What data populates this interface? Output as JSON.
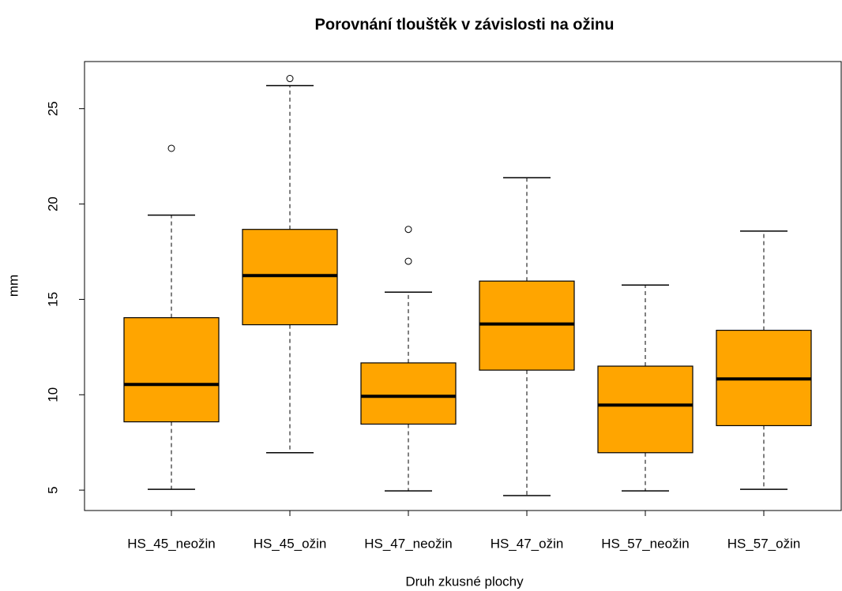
{
  "chart_data": {
    "type": "box",
    "title": "Porovnání tlouštěk v závislosti na ožinu",
    "x_label": "Druh zkusné plochy",
    "y_label": "mm",
    "categories": [
      "HS_45_neožin",
      "HS_45_ožin",
      "HS_47_neožin",
      "HS_47_ožin",
      "HS_57_neožin",
      "HS_57_ožin"
    ],
    "boxes": [
      {
        "min": 5.04,
        "q1": 8.58,
        "median": 10.54,
        "q3": 14.04,
        "max": 19.42,
        "outliers": [
          22.92
        ]
      },
      {
        "min": 6.96,
        "q1": 13.67,
        "median": 16.25,
        "q3": 18.67,
        "max": 26.21,
        "outliers": [
          26.58
        ]
      },
      {
        "min": 4.96,
        "q1": 8.46,
        "median": 9.92,
        "q3": 11.67,
        "max": 15.38,
        "outliers": [
          17.0,
          18.67
        ]
      },
      {
        "min": 4.71,
        "q1": 11.29,
        "median": 13.71,
        "q3": 15.96,
        "max": 21.38,
        "outliers": []
      },
      {
        "min": 4.96,
        "q1": 6.96,
        "median": 9.46,
        "q3": 11.5,
        "max": 15.75,
        "outliers": []
      },
      {
        "min": 5.04,
        "q1": 8.38,
        "median": 10.83,
        "q3": 13.38,
        "max": 18.58,
        "outliers": []
      }
    ],
    "color": "#ffa500",
    "ylim": [
      3.93,
      27.47
    ],
    "yticks": [
      5,
      10,
      15,
      20,
      25
    ]
  }
}
